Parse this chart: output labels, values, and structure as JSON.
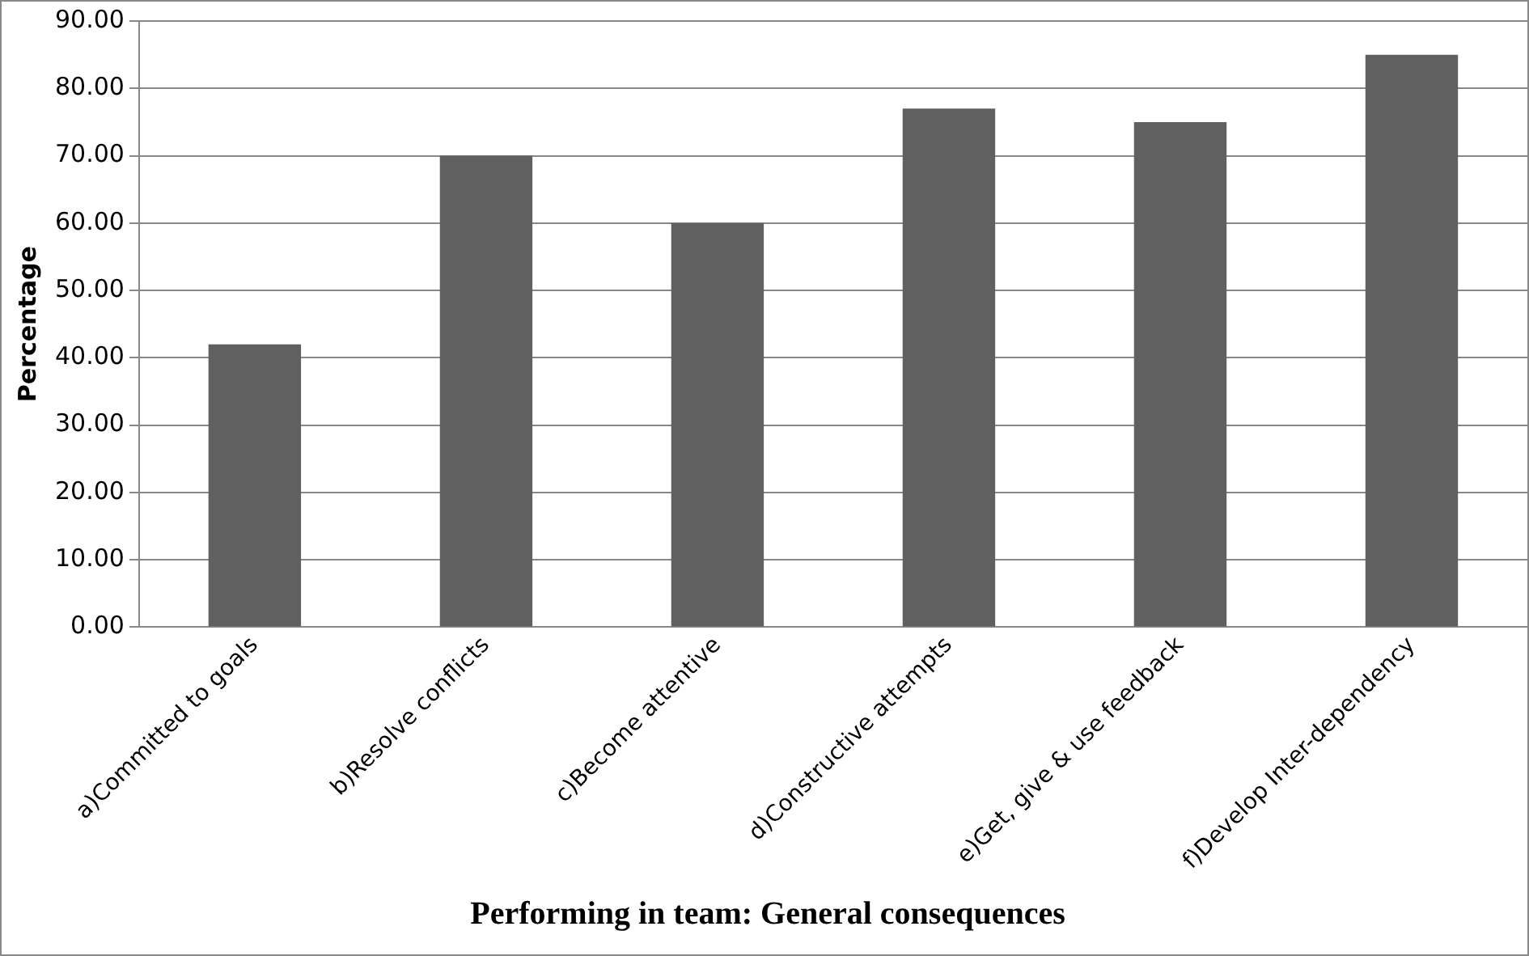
{
  "chart_data": {
    "type": "bar",
    "xlabel": "Performing in team: General consequences",
    "ylabel": "Percentage",
    "categories": [
      "a)Committed to goals",
      "b)Resolve conflicts",
      "c)Become attentive",
      "d)Constructive attempts",
      "e)Get, give & use feedback",
      "f)Develop Inter-dependency"
    ],
    "values": [
      42,
      70,
      60,
      77,
      75,
      85
    ],
    "color": "#606060",
    "ylim": [
      0,
      90
    ],
    "yticks": [
      {
        "value": 0,
        "label": "0.00"
      },
      {
        "value": 10,
        "label": "10.00"
      },
      {
        "value": 20,
        "label": "20.00"
      },
      {
        "value": 30,
        "label": "30.00"
      },
      {
        "value": 40,
        "label": "40.00"
      },
      {
        "value": 50,
        "label": "50.00"
      },
      {
        "value": 60,
        "label": "60.00"
      },
      {
        "value": 70,
        "label": "70.00"
      },
      {
        "value": 80,
        "label": "80.00"
      },
      {
        "value": 90,
        "label": "90.00"
      }
    ],
    "grid": "y",
    "legend": false
  }
}
